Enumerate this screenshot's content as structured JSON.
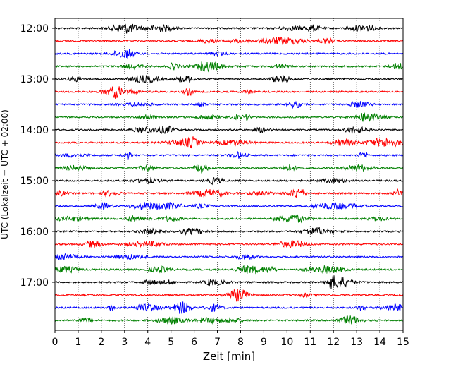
{
  "chart_data": {
    "type": "line",
    "title": "",
    "xlabel": "Zeit  [min]",
    "ylabel": "UTC (Lokalzeit = UTC + 02:00)",
    "xlim": [
      0,
      15
    ],
    "x_ticks": [
      "0",
      "1",
      "2",
      "3",
      "4",
      "5",
      "6",
      "7",
      "8",
      "9",
      "10",
      "11",
      "12",
      "13",
      "14",
      "15"
    ],
    "y_tick_labels": [
      "12:00",
      "13:00",
      "14:00",
      "15:00",
      "16:00",
      "17:00"
    ],
    "grid": "vertical dotted lines at each minute",
    "legend": "none",
    "trace_interval_minutes": 15,
    "trace_start": "12:00",
    "trace_count": 24,
    "trace_colors": [
      "#000000",
      "#ff0000",
      "#0000ff",
      "#008000"
    ],
    "series_description": "Seismograph traces, one per 15-minute interval, colors cycling black, red, blue, green"
  }
}
